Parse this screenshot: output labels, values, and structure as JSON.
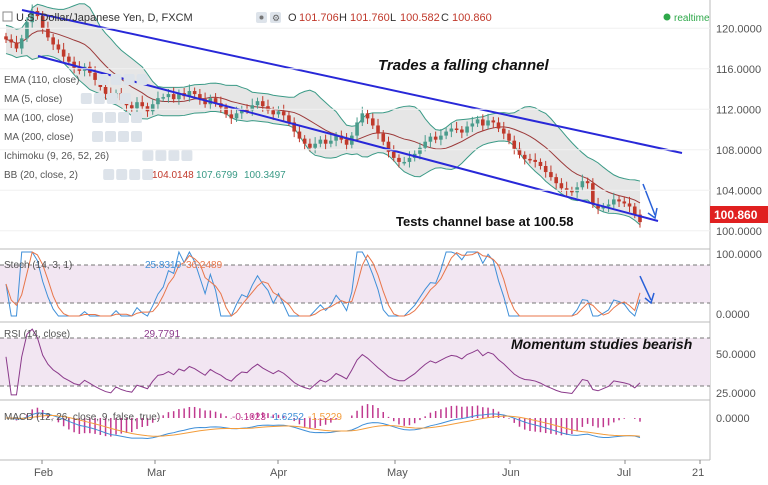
{
  "header": {
    "symbol_title": "U.S. Dollar/Japanese Yen, D, FXCM",
    "o_label": "O",
    "o_value": "101.706",
    "h_label": "H",
    "h_value": "101.760",
    "l_label": "L",
    "l_value": "100.582",
    "c_label": "C",
    "c_value": "100.860",
    "realtime": "realtime"
  },
  "indicators": [
    {
      "label": "EMA (110, close)"
    },
    {
      "label": "MA (5, close)"
    },
    {
      "label": "MA (100, close)"
    },
    {
      "label": "MA (200, close)"
    },
    {
      "label": "Ichimoku (9, 26, 52, 26)"
    },
    {
      "label": "BB (20, close, 2)",
      "v1": "104.0148",
      "v2": "107.6799",
      "v3": "100.3497"
    }
  ],
  "stoch": {
    "label": "Stoch (14, 3, 1)",
    "k": "25.8310",
    "d": "36.2489"
  },
  "rsi": {
    "label": "RSI (14, close)",
    "value": "29.7791"
  },
  "macd": {
    "label": "MACD (12, 26, close, 9, false, true)",
    "hist": "-0.1023",
    "macd": "-1.6252",
    "signal": "-1.5229"
  },
  "annotations": {
    "channel": "Trades a falling channel",
    "base": "Tests channel base at 100.58",
    "momentum": "Momentum studies bearish"
  },
  "colors": {
    "up": "#4a9c8c",
    "down": "#c0392b",
    "channel": "#2828d8",
    "bb": "#3a9a86",
    "bb_fill": "#e6e6e6",
    "ma": "#9c3a3a",
    "stoch_k": "#3f8fd8",
    "stoch_d": "#e8764a",
    "rsi": "#8b3a8b",
    "osc_fill": "#f2e6f2",
    "macd": "#3f8fd8",
    "signal": "#f39c3a",
    "hist": "#c0398f",
    "last_bg": "#e02020"
  },
  "chart_data": {
    "type": "candlestick",
    "title": "U.S. Dollar/Japanese Yen, D, FXCM",
    "x_ticks": [
      "Feb",
      "Mar",
      "Apr",
      "May",
      "Jun",
      "Jul",
      "21"
    ],
    "price_ticks": [
      "120.0000",
      "116.0000",
      "112.0000",
      "108.0000",
      "104.0000",
      "100.0000"
    ],
    "ylim": [
      98.5,
      122.0
    ],
    "last_price": "100.860",
    "closes": [
      118.9,
      118.6,
      118.0,
      119.0,
      120.6,
      121.7,
      121.2,
      120.0,
      119.1,
      118.4,
      117.9,
      117.2,
      116.7,
      116.1,
      115.8,
      116.2,
      115.6,
      114.9,
      114.2,
      113.5,
      113.1,
      113.6,
      112.9,
      112.4,
      112.1,
      112.7,
      112.3,
      111.8,
      112.5,
      113.1,
      113.2,
      113.5,
      113.0,
      113.6,
      113.3,
      113.8,
      113.5,
      113.0,
      112.5,
      113.1,
      112.6,
      112.2,
      111.5,
      111.1,
      111.6,
      112.0,
      111.9,
      112.4,
      112.8,
      112.3,
      111.9,
      111.5,
      111.8,
      111.4,
      110.7,
      109.8,
      109.1,
      108.6,
      108.2,
      108.6,
      109.0,
      108.6,
      108.9,
      109.4,
      109.0,
      108.5,
      109.4,
      110.7,
      111.6,
      111.1,
      110.4,
      109.6,
      108.8,
      107.8,
      107.2,
      106.8,
      106.8,
      107.2,
      107.6,
      108.2,
      108.8,
      109.3,
      109.0,
      109.4,
      109.8,
      110.1,
      110.0,
      109.7,
      110.3,
      110.6,
      111.0,
      110.4,
      110.9,
      110.7,
      110.1,
      109.6,
      108.9,
      108.1,
      107.5,
      107.1,
      107.0,
      106.8,
      106.4,
      105.8,
      105.3,
      104.7,
      104.2,
      104.0,
      103.8,
      104.3,
      104.9,
      104.7,
      102.6,
      102.2,
      102.4,
      102.6,
      103.1,
      102.9,
      102.7,
      102.4,
      101.6,
      100.86
    ],
    "stoch_k_value": 25.831,
    "stoch_d_value": 36.2489,
    "stoch_ticks": [
      "100.0000",
      "0.0000"
    ],
    "rsi_value": 29.7791,
    "rsi_ticks": [
      "50.0000",
      "25.0000"
    ],
    "macd_value": -1.6252,
    "signal_value": -1.5229,
    "hist_value": -0.1023,
    "macd_ticks": [
      "0.0000"
    ]
  }
}
